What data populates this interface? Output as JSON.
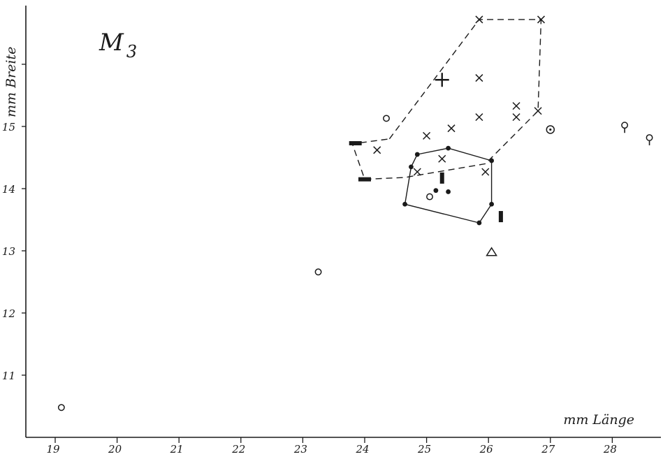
{
  "chart_data": {
    "type": "scatter",
    "title": "M",
    "title_subscript": "3",
    "xlabel": "mm Länge",
    "ylabel": "mm Breite",
    "xlim": [
      18.7,
      28.8
    ],
    "ylim": [
      10.0,
      17.0
    ],
    "x_ticks": [
      "19",
      "20",
      "21",
      "22",
      "23",
      "24",
      "25",
      "26",
      "27",
      "28"
    ],
    "y_ticks": [
      "11",
      "12",
      "13",
      "14",
      "15"
    ],
    "y_unlabeled_ticks": [
      16
    ],
    "grid": false,
    "legend": "none",
    "series": [
      {
        "marker": "cross-x",
        "points": [
          [
            25.85,
            16.72
          ],
          [
            26.85,
            16.72
          ],
          [
            25.85,
            15.78
          ],
          [
            25.85,
            15.15
          ],
          [
            26.45,
            15.33
          ],
          [
            26.45,
            15.15
          ],
          [
            26.8,
            15.25
          ],
          [
            25.0,
            14.85
          ],
          [
            25.4,
            14.97
          ],
          [
            24.2,
            14.62
          ],
          [
            25.25,
            14.48
          ],
          [
            24.85,
            14.27
          ],
          [
            25.95,
            14.27
          ]
        ],
        "hull": [
          [
            24.4,
            14.8
          ],
          [
            25.85,
            16.72
          ],
          [
            26.85,
            16.72
          ],
          [
            26.8,
            15.25
          ],
          [
            25.95,
            14.4
          ],
          [
            24.65,
            14.18
          ],
          [
            24.0,
            14.15
          ],
          [
            23.8,
            14.72
          ]
        ],
        "hull_style": "dashed"
      },
      {
        "marker": "plus",
        "points": [
          [
            25.25,
            15.75
          ]
        ]
      },
      {
        "marker": "filled-dot",
        "points": [
          [
            24.85,
            14.55
          ],
          [
            25.35,
            14.65
          ],
          [
            26.05,
            14.45
          ],
          [
            24.75,
            14.35
          ],
          [
            24.65,
            13.75
          ],
          [
            25.15,
            13.97
          ],
          [
            25.35,
            13.95
          ],
          [
            26.05,
            13.75
          ],
          [
            25.85,
            13.45
          ]
        ],
        "hull": [
          [
            24.85,
            14.55
          ],
          [
            25.35,
            14.65
          ],
          [
            26.05,
            14.45
          ],
          [
            26.05,
            13.75
          ],
          [
            25.85,
            13.45
          ],
          [
            24.65,
            13.75
          ],
          [
            24.75,
            14.35
          ]
        ],
        "hull_style": "solid"
      },
      {
        "marker": "open-circle",
        "points": [
          [
            19.1,
            10.48
          ],
          [
            23.25,
            12.66
          ],
          [
            24.35,
            15.13
          ],
          [
            25.05,
            13.87
          ]
        ]
      },
      {
        "marker": "dotted-circle",
        "points": [
          [
            27.0,
            14.95
          ]
        ]
      },
      {
        "marker": "circle-stem",
        "points": [
          [
            28.2,
            15.02
          ],
          [
            28.6,
            14.82
          ]
        ]
      },
      {
        "marker": "horizontal-bar",
        "points": [
          [
            23.85,
            14.73
          ],
          [
            24.0,
            14.15
          ]
        ]
      },
      {
        "marker": "vertical-bar",
        "points": [
          [
            25.25,
            14.17
          ],
          [
            26.2,
            13.55
          ]
        ]
      },
      {
        "marker": "open-triangle",
        "points": [
          [
            26.05,
            12.98
          ]
        ]
      }
    ]
  }
}
